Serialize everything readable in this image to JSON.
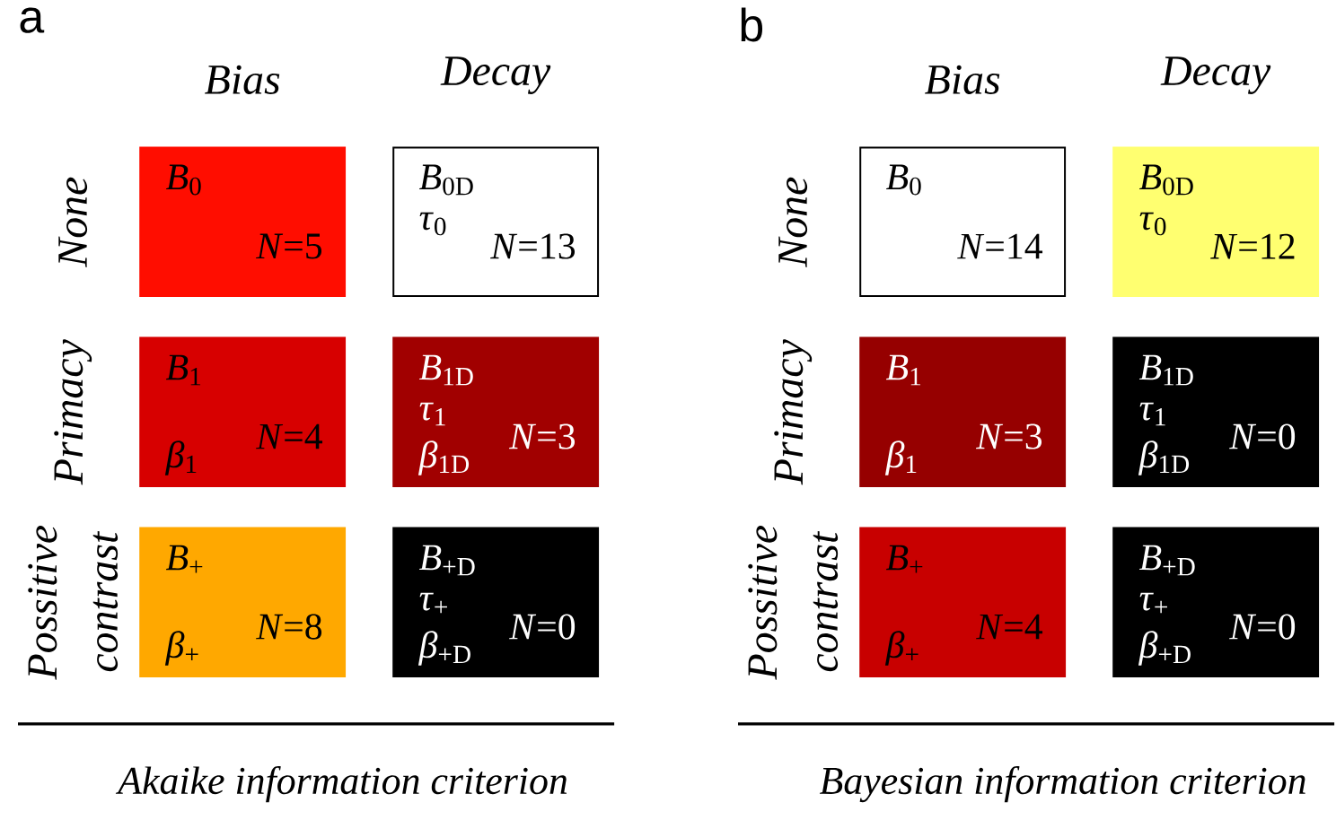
{
  "chart_data": [
    {
      "type": "heatmap",
      "title": "a",
      "xlabel": "Akaike information criterion",
      "categories": [
        "Bias",
        "Decay"
      ],
      "y_categories": [
        "None",
        "Primacy",
        "Possitive contrast"
      ],
      "cells": [
        [
          5,
          13
        ],
        [
          4,
          3
        ],
        [
          8,
          0
        ]
      ],
      "cell_labels": [
        [
          "*N*=5",
          "*N*=13"
        ],
        [
          "*N*=4",
          "*N*=3"
        ],
        [
          "*N*=8",
          "*N*=0"
        ]
      ],
      "annotations": [
        "*B*$_{0}$",
        "*B*$_{0D}$",
        "*τ*$_{0}$",
        "*B*$_{1}$",
        "*β*$_{1}$",
        "*B*$_{1D}$",
        "*τ*$_{1}$",
        "*β*$_{1D}$",
        "*B*$_{+}$",
        "*β*$_{+}$",
        "*B*$_{+D}$",
        "*τ*$_{+}$",
        "*β*$_{+D}$"
      ]
    },
    {
      "type": "heatmap",
      "title": "b",
      "xlabel": "Bayesian information criterion",
      "categories": [
        "Bias",
        "Decay"
      ],
      "y_categories": [
        "None",
        "Primacy",
        "Possitive contrast"
      ],
      "cells": [
        [
          14,
          12
        ],
        [
          3,
          0
        ],
        [
          4,
          0
        ]
      ],
      "cell_labels": [
        [
          "*N*=14",
          "*N*=12"
        ],
        [
          "*N*=3",
          "*N*=0"
        ],
        [
          "*N*=4",
          "*N*=0"
        ]
      ],
      "annotations": [
        "*B*$_{0}$",
        "*B*$_{0D}$",
        "*τ*$_{0}$",
        "*B*$_{1}$",
        "*β*$_{1}$",
        "*B*$_{1D}$",
        "*τ*$_{1}$",
        "*β*$_{1D}$",
        "*B*$_{+}$",
        "*β*$_{+}$",
        "*B*$_{+D}$",
        "*τ*$_{+}$",
        "*β*$_{+D}$"
      ]
    }
  ]
}
